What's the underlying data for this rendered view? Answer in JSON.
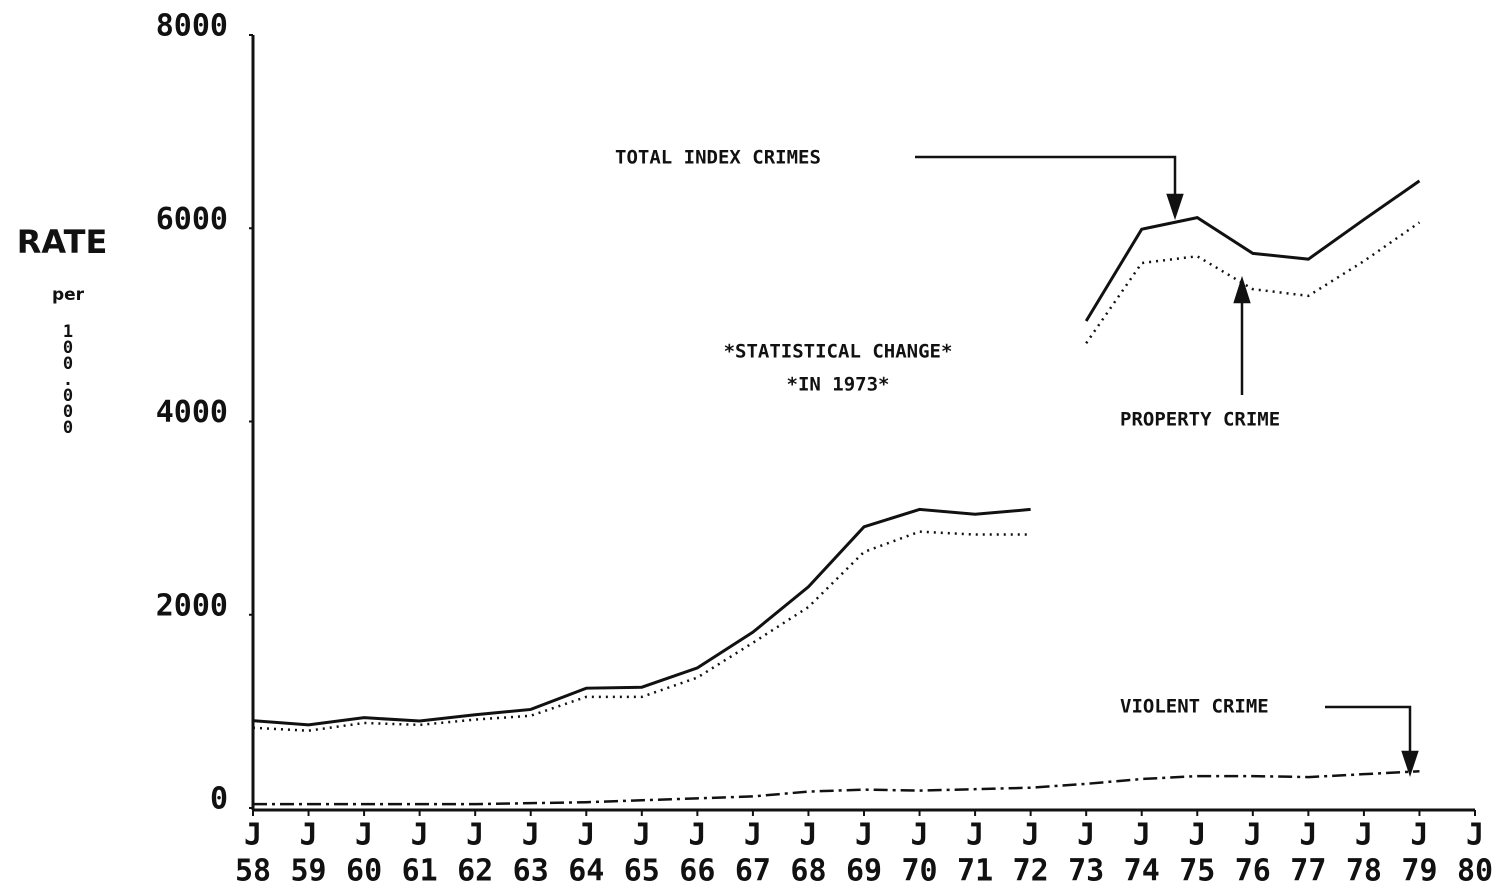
{
  "chart_data": {
    "type": "line",
    "y_label": "RATE",
    "y_label_sub": "per",
    "y_label_unit": "100.000",
    "tick_month": "J",
    "x": [
      58,
      59,
      60,
      61,
      62,
      63,
      64,
      65,
      66,
      67,
      68,
      69,
      70,
      71,
      72,
      72.5,
      73,
      74,
      75,
      76,
      77,
      78,
      79
    ],
    "series": [
      {
        "name": "TOTAL INDEX CRIMES",
        "color": "#111",
        "style": "solid",
        "values": [
          904,
          860,
          935,
          900,
          965,
          1020,
          1240,
          1250,
          1450,
          1820,
          2290,
          2910,
          3090,
          3040,
          3090,
          null,
          5040,
          5990,
          6110,
          5740,
          5680,
          6090,
          6490
        ]
      },
      {
        "name": "PROPERTY CRIME",
        "color": "#111",
        "style": "dotted",
        "values": [
          830,
          800,
          880,
          860,
          915,
          955,
          1150,
          1150,
          1350,
          1710,
          2080,
          2650,
          2860,
          2830,
          2830,
          null,
          4810,
          5640,
          5710,
          5370,
          5300,
          5660,
          6060
        ]
      },
      {
        "name": "VIOLENT CRIME",
        "color": "#111",
        "style": "dashdot",
        "values": [
          40,
          40,
          40,
          40,
          40,
          50,
          60,
          80,
          100,
          120,
          170,
          190,
          180,
          195,
          210,
          230,
          250,
          300,
          330,
          330,
          320,
          350,
          380
        ]
      }
    ],
    "annotations": [
      "*STATISTICAL CHANGE*",
      "*IN 1973*"
    ],
    "xlim": [
      58,
      80
    ],
    "xticks": [
      {
        "value": 58,
        "label": "58"
      },
      {
        "value": 59,
        "label": "59"
      },
      {
        "value": 60,
        "label": "60"
      },
      {
        "value": 61,
        "label": "61"
      },
      {
        "value": 62,
        "label": "62"
      },
      {
        "value": 63,
        "label": "63"
      },
      {
        "value": 64,
        "label": "64"
      },
      {
        "value": 65,
        "label": "65"
      },
      {
        "value": 66,
        "label": "66"
      },
      {
        "value": 67,
        "label": "67"
      },
      {
        "value": 68,
        "label": "68"
      },
      {
        "value": 69,
        "label": "69"
      },
      {
        "value": 70,
        "label": "70"
      },
      {
        "value": 71,
        "label": "71"
      },
      {
        "value": 72,
        "label": "72"
      },
      {
        "value": 73,
        "label": "73"
      },
      {
        "value": 74,
        "label": "74"
      },
      {
        "value": 75,
        "label": "75"
      },
      {
        "value": 76,
        "label": "76"
      },
      {
        "value": 77,
        "label": "77"
      },
      {
        "value": 78,
        "label": "78"
      },
      {
        "value": 79,
        "label": "79"
      },
      {
        "value": 80,
        "label": "80"
      }
    ],
    "ylim": [
      0,
      8000
    ],
    "yticks": [
      0,
      2000,
      4000,
      6000,
      8000
    ],
    "grid": false
  }
}
